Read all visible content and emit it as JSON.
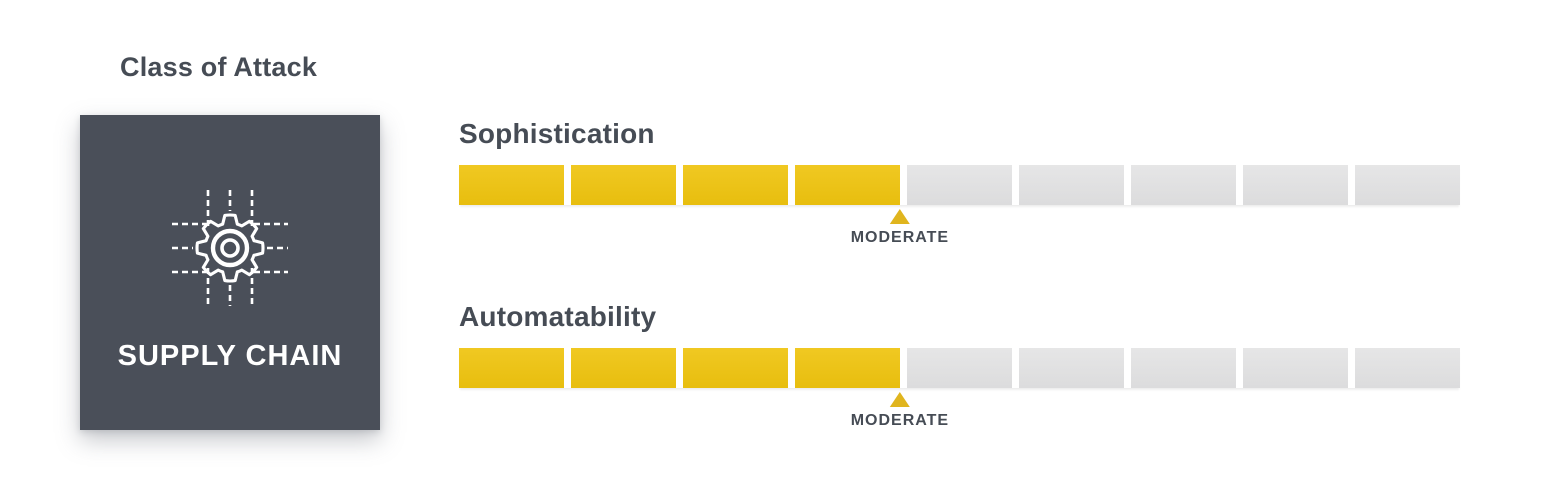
{
  "page_title": "Class of Attack",
  "card": {
    "label": "SUPPLY CHAIN",
    "icon": "circuit-gear-icon",
    "bg_color": "#4a4f59"
  },
  "meters": [
    {
      "name": "Sophistication",
      "segments_total": 9,
      "segments_filled": 4,
      "rating_label": "MODERATE"
    },
    {
      "name": "Automatability",
      "segments_total": 9,
      "segments_filled": 4,
      "rating_label": "MODERATE"
    }
  ],
  "colors": {
    "segment_filled": "#efc40f",
    "segment_empty": "#e3e3e4",
    "marker": "#e0b51e",
    "heading_text": "#464c55",
    "card_text": "#ffffff"
  }
}
